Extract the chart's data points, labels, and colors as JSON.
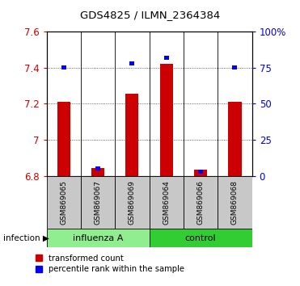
{
  "title": "GDS4825 / ILMN_2364384",
  "samples": [
    "GSM869065",
    "GSM869067",
    "GSM869069",
    "GSM869064",
    "GSM869066",
    "GSM869068"
  ],
  "transformed_counts": [
    7.21,
    6.845,
    7.255,
    7.42,
    6.835,
    7.21
  ],
  "percentile_ranks": [
    75,
    5,
    78,
    82,
    3,
    75
  ],
  "y_min": 6.8,
  "y_max": 7.6,
  "y_ticks": [
    6.8,
    7.0,
    7.2,
    7.4,
    7.6
  ],
  "y_tick_labels": [
    "6.8",
    "7",
    "7.2",
    "7.4",
    "7.6"
  ],
  "right_y_ticks": [
    0,
    25,
    50,
    75,
    100
  ],
  "right_y_labels": [
    "0",
    "25",
    "50",
    "75",
    "100%"
  ],
  "red_color": "#CC0000",
  "blue_color": "#0000EE",
  "bar_bottom": 6.8,
  "percentile_scale_max": 100,
  "group_info": [
    {
      "start": 0,
      "end": 2,
      "label": "influenza A",
      "color": "#90EE90"
    },
    {
      "start": 3,
      "end": 5,
      "label": "control",
      "color": "#32CD32"
    }
  ],
  "bar_width": 0.38,
  "blue_bar_width": 0.14,
  "blue_bar_height": 0.022,
  "sample_box_color": "#C8C8C8",
  "grid_color": "#333333",
  "infection_label": "infection",
  "legend_labels": [
    "transformed count",
    "percentile rank within the sample"
  ]
}
